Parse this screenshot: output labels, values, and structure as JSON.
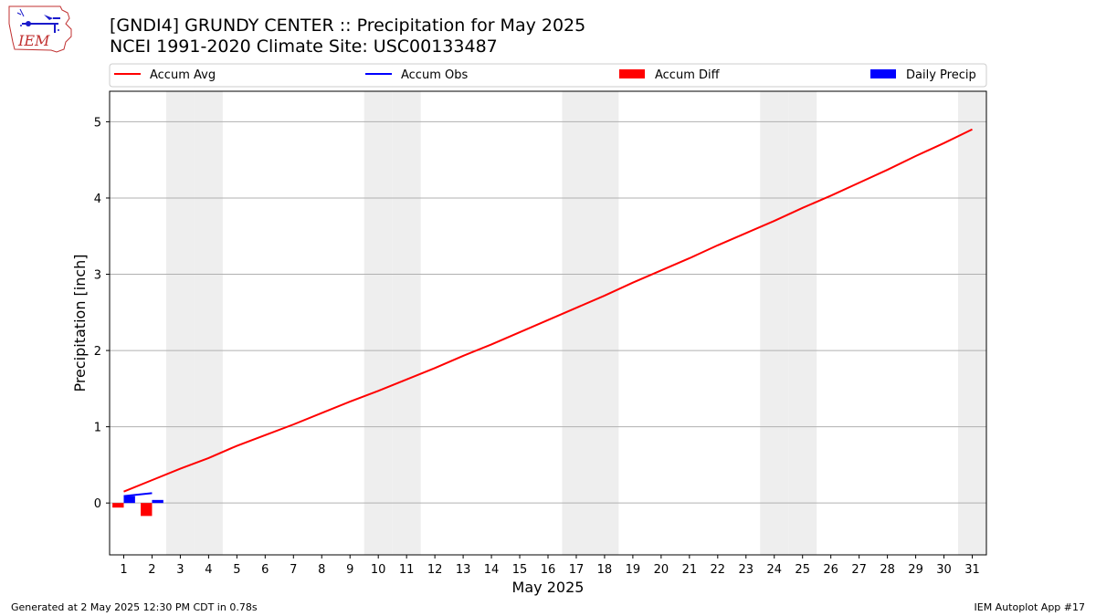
{
  "header": {
    "title_line1": "[GNDI4] GRUNDY CENTER :: Precipitation for May 2025",
    "title_line2": "NCEI 1991-2020 Climate Site: USC00133487",
    "logo_text": "IEM"
  },
  "footer": {
    "generated": "Generated at 2 May 2025 12:30 PM CDT in 0.78s",
    "app": "IEM Autoplot App #17"
  },
  "colors": {
    "accum_avg": "#ff0000",
    "accum_obs": "#0000ff",
    "accum_diff": "#ff0000",
    "daily_precip": "#0000ff",
    "weekend_shade": "#eeeeee",
    "grid": "#b0b0b0"
  },
  "chart_data": {
    "type": "line",
    "xlabel": "May 2025",
    "ylabel": "Precipitation [inch]",
    "xlim": [
      0.5,
      31.5
    ],
    "ylim": [
      -0.68,
      5.4
    ],
    "x_ticks": [
      1,
      2,
      3,
      4,
      5,
      6,
      7,
      8,
      9,
      10,
      11,
      12,
      13,
      14,
      15,
      16,
      17,
      18,
      19,
      20,
      21,
      22,
      23,
      24,
      25,
      26,
      27,
      28,
      29,
      30,
      31
    ],
    "y_ticks": [
      0,
      1,
      2,
      3,
      4,
      5
    ],
    "grid": "horizontal",
    "legend_position": "top, above plot",
    "legend": [
      "Accum Avg",
      "Accum Obs",
      "Accum Diff",
      "Daily Precip"
    ],
    "weekend_shading_days": [
      3,
      4,
      10,
      11,
      17,
      18,
      24,
      25,
      31
    ],
    "series": [
      {
        "name": "Accum Avg",
        "type": "line",
        "x": [
          1,
          2,
          3,
          4,
          5,
          6,
          7,
          8,
          9,
          10,
          11,
          12,
          13,
          14,
          15,
          16,
          17,
          18,
          19,
          20,
          21,
          22,
          23,
          24,
          25,
          26,
          27,
          28,
          29,
          30,
          31
        ],
        "values": [
          0.15,
          0.3,
          0.45,
          0.59,
          0.75,
          0.89,
          1.03,
          1.18,
          1.33,
          1.47,
          1.62,
          1.77,
          1.93,
          2.08,
          2.24,
          2.4,
          2.56,
          2.72,
          2.89,
          3.05,
          3.21,
          3.38,
          3.54,
          3.7,
          3.87,
          4.03,
          4.2,
          4.37,
          4.55,
          4.72,
          4.9
        ]
      },
      {
        "name": "Accum Obs",
        "type": "line",
        "x": [
          1,
          2
        ],
        "values": [
          0.09,
          0.13
        ]
      },
      {
        "name": "Accum Diff",
        "type": "bar",
        "x": [
          1,
          2
        ],
        "values": [
          -0.06,
          -0.17
        ]
      },
      {
        "name": "Daily Precip",
        "type": "bar",
        "x": [
          1,
          2
        ],
        "values": [
          0.09,
          0.04
        ]
      }
    ]
  }
}
